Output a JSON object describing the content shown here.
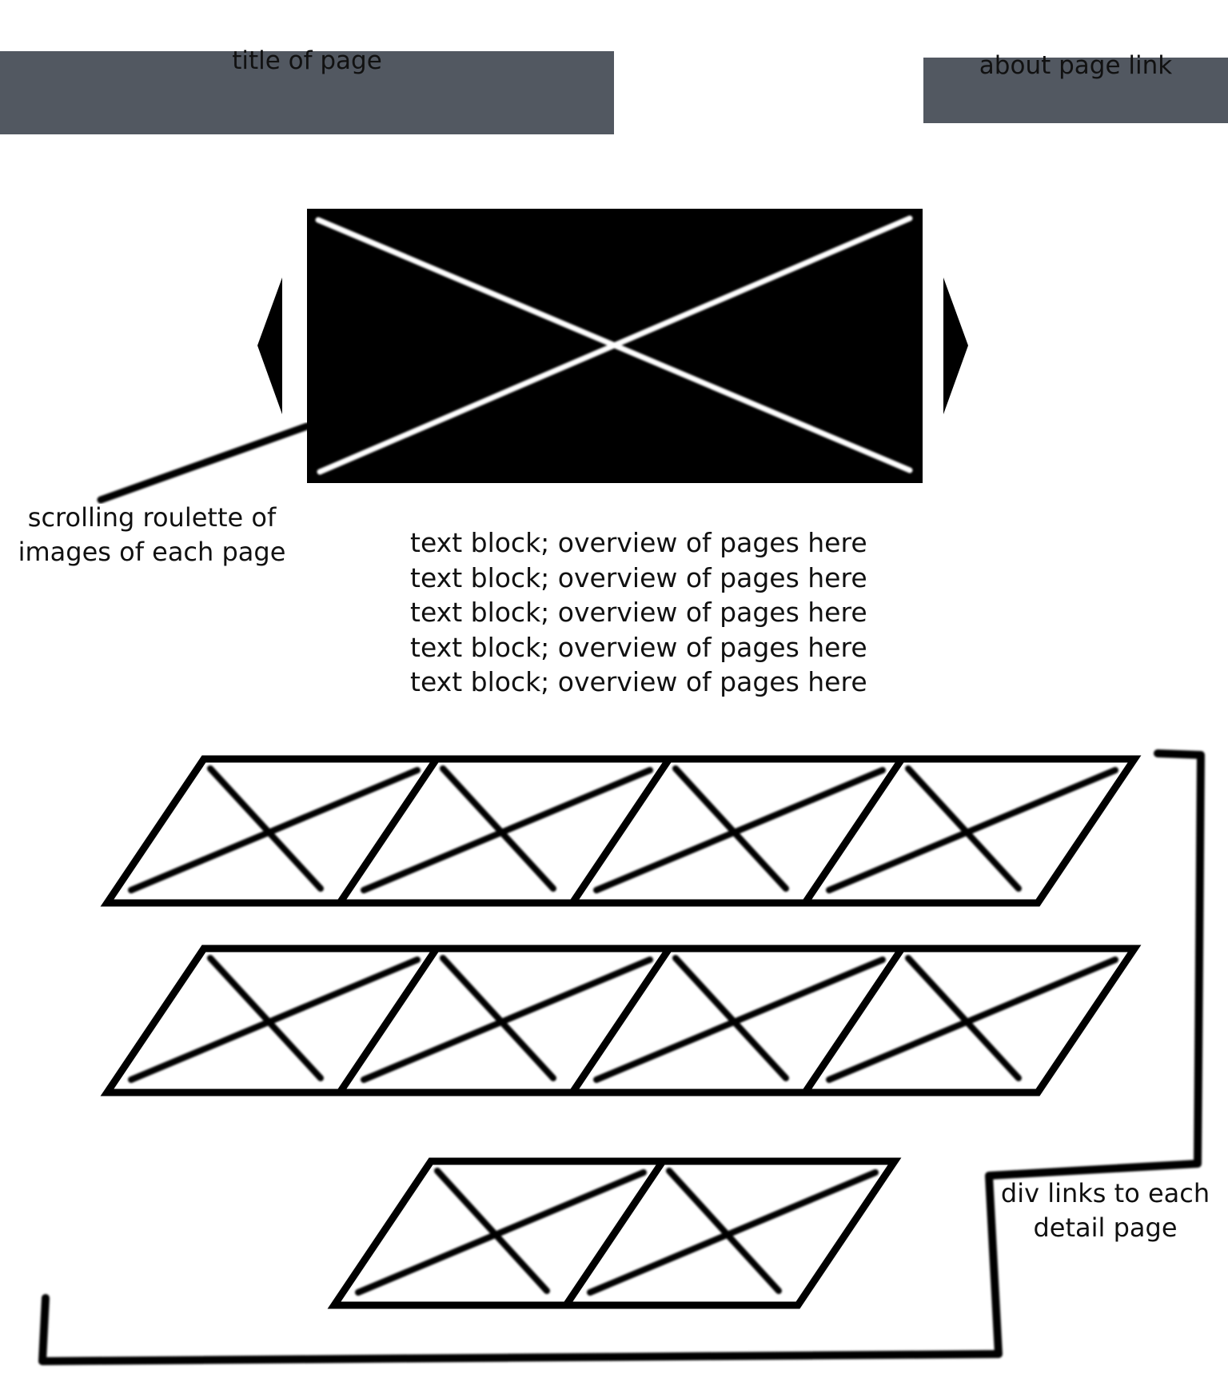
{
  "header": {
    "title": "title of page",
    "about_link": "about page link"
  },
  "carousel": {
    "annotation_line1": "scrolling roulette of",
    "annotation_line2": "images of each page"
  },
  "overview": {
    "lines": [
      "text block; overview of pages here",
      "text block; overview of pages here",
      "text block; overview of pages here",
      "text block; overview of pages here",
      "text block; overview of pages here"
    ]
  },
  "grid": {
    "rows": [
      4,
      4,
      2
    ],
    "annotation_line1": "div links to each",
    "annotation_line2": "detail page"
  },
  "colors": {
    "header_bar": "#525861",
    "carousel_fill": "#000000",
    "stroke": "#000000"
  }
}
